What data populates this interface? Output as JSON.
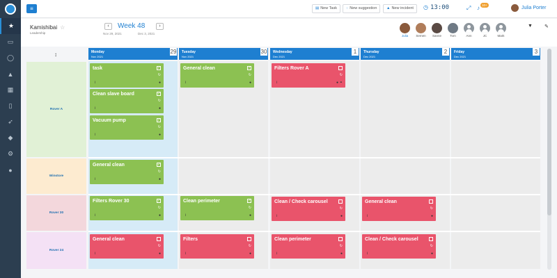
{
  "topbar": {
    "menu_icon": "menu-icon",
    "new_task": "New Task",
    "new_suggestion": "New suggestion",
    "new_incident": "New incident",
    "clock": "13:00",
    "notif_count": "10+",
    "user_name": "Julia Porter"
  },
  "sidebar": {
    "icons": [
      "star-icon",
      "monitor-icon",
      "lightbulb-icon",
      "warning-icon",
      "calendar-icon",
      "document-icon",
      "rocket-icon",
      "graduation-icon",
      "gears-icon",
      "chat-icon"
    ]
  },
  "header": {
    "title": "Kamishibai",
    "subtitle": "Leadership",
    "week_label": "Week 48",
    "date_from": "Nov 29, 2021",
    "date_to": "Dec 3, 2021",
    "people": [
      "Julia",
      "Semen",
      "Sanne",
      "Tom",
      "Ann",
      "JC",
      "Mark"
    ]
  },
  "days": [
    {
      "name": "Monday",
      "date": "Nov 2021",
      "num": "29"
    },
    {
      "name": "Tuesday",
      "date": "Nov 2021",
      "num": "30"
    },
    {
      "name": "Wednesday",
      "date": "Dec 2021",
      "num": "1"
    },
    {
      "name": "Thursday",
      "date": "Dec 2021",
      "num": "2"
    },
    {
      "name": "Friday",
      "date": "Dec 2021",
      "num": "3"
    }
  ],
  "rows": [
    "Rover A",
    "Winstore",
    "Rover 30",
    "Rover 24"
  ],
  "cards": [
    {
      "title": "task",
      "status": "green"
    },
    {
      "title": "Clean slave board",
      "status": "green"
    },
    {
      "title": "Vacuum pump",
      "status": "green"
    },
    {
      "title": "General clean",
      "status": "green"
    },
    {
      "title": "Filters Rover A",
      "status": "red"
    },
    {
      "title": "General clean",
      "status": "green"
    },
    {
      "title": "Filters Rover 30",
      "status": "green"
    },
    {
      "title": "Clean perimeter",
      "status": "green"
    },
    {
      "title": "Clean / Check carousel",
      "status": "red"
    },
    {
      "title": "General clean",
      "status": "red"
    },
    {
      "title": "General clean",
      "status": "red"
    },
    {
      "title": "Filters",
      "status": "red"
    },
    {
      "title": "Clean perimeter",
      "status": "red"
    },
    {
      "title": "Clean / Check carousel",
      "status": "red"
    }
  ]
}
